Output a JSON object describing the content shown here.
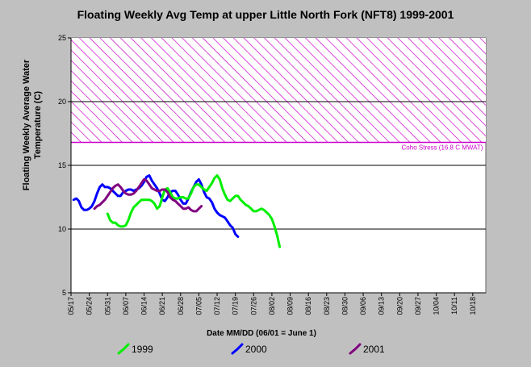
{
  "chart_data": {
    "type": "line",
    "title": "Floating Weekly Avg Temp at upper Little North Fork (NFT8) 1999-2001",
    "xlabel": "Date MM/DD (06/01 = June 1)",
    "ylabel_lines": [
      "Floating Weekly Average Water",
      "Temperature (C)"
    ],
    "x_ticks": [
      "05/17",
      "05/24",
      "05/31",
      "06/07",
      "06/14",
      "06/21",
      "06/28",
      "07/05",
      "07/12",
      "07/19",
      "07/26",
      "08/02",
      "08/09",
      "08/16",
      "08/23",
      "08/30",
      "09/06",
      "09/13",
      "09/20",
      "09/27",
      "10/04",
      "10/11",
      "10/18"
    ],
    "y_ticks": [
      5,
      10,
      15,
      20,
      25
    ],
    "ylim": [
      5,
      25
    ],
    "grid": "horizontal",
    "threshold": {
      "label": "Coho Stress (16.8 C MWAT)",
      "value": 16.8,
      "band_to": 25,
      "color": "#cc00cc"
    },
    "legend_position": "bottom",
    "series": [
      {
        "name": "1999",
        "color": "#00ee00",
        "points": [
          [
            14,
            11.2
          ],
          [
            15,
            10.7
          ],
          [
            16,
            10.5
          ],
          [
            17,
            10.5
          ],
          [
            18,
            10.3
          ],
          [
            19,
            10.2
          ],
          [
            20,
            10.2
          ],
          [
            21,
            10.3
          ],
          [
            22,
            10.7
          ],
          [
            23,
            11.3
          ],
          [
            24,
            11.7
          ],
          [
            25,
            11.9
          ],
          [
            26,
            12.1
          ],
          [
            27,
            12.3
          ],
          [
            28,
            12.3
          ],
          [
            29,
            12.3
          ],
          [
            30,
            12.3
          ],
          [
            31,
            12.2
          ],
          [
            32,
            12.0
          ],
          [
            33,
            11.6
          ],
          [
            34,
            11.8
          ],
          [
            35,
            12.5
          ],
          [
            36,
            13.1
          ],
          [
            37,
            13.2
          ],
          [
            38,
            12.9
          ],
          [
            39,
            12.5
          ],
          [
            40,
            12.4
          ],
          [
            41,
            12.4
          ],
          [
            42,
            12.5
          ],
          [
            43,
            12.5
          ],
          [
            44,
            12.4
          ],
          [
            45,
            12.4
          ],
          [
            46,
            12.8
          ],
          [
            47,
            13.3
          ],
          [
            48,
            13.5
          ],
          [
            49,
            13.5
          ],
          [
            50,
            13.3
          ],
          [
            51,
            13.1
          ],
          [
            52,
            13.0
          ],
          [
            53,
            13.3
          ],
          [
            54,
            13.6
          ],
          [
            55,
            14.0
          ],
          [
            56,
            14.2
          ],
          [
            57,
            13.9
          ],
          [
            58,
            13.2
          ],
          [
            59,
            12.7
          ],
          [
            60,
            12.3
          ],
          [
            61,
            12.2
          ],
          [
            62,
            12.4
          ],
          [
            63,
            12.6
          ],
          [
            64,
            12.6
          ],
          [
            65,
            12.3
          ],
          [
            66,
            12.1
          ],
          [
            67,
            11.9
          ],
          [
            68,
            11.8
          ],
          [
            69,
            11.6
          ],
          [
            70,
            11.4
          ],
          [
            71,
            11.4
          ],
          [
            72,
            11.5
          ],
          [
            73,
            11.6
          ],
          [
            74,
            11.5
          ],
          [
            75,
            11.3
          ],
          [
            76,
            11.1
          ],
          [
            77,
            10.8
          ],
          [
            78,
            10.2
          ],
          [
            79,
            9.5
          ],
          [
            80,
            8.6
          ]
        ]
      },
      {
        "name": "2000",
        "color": "#0000ff",
        "points": [
          [
            1,
            12.3
          ],
          [
            2,
            12.4
          ],
          [
            3,
            12.2
          ],
          [
            4,
            11.7
          ],
          [
            5,
            11.5
          ],
          [
            6,
            11.5
          ],
          [
            7,
            11.6
          ],
          [
            8,
            11.8
          ],
          [
            9,
            12.2
          ],
          [
            10,
            12.8
          ],
          [
            11,
            13.3
          ],
          [
            12,
            13.5
          ],
          [
            13,
            13.3
          ],
          [
            14,
            13.3
          ],
          [
            15,
            13.2
          ],
          [
            16,
            13.0
          ],
          [
            17,
            12.8
          ],
          [
            18,
            12.6
          ],
          [
            19,
            12.6
          ],
          [
            20,
            12.9
          ],
          [
            21,
            13.0
          ],
          [
            22,
            13.1
          ],
          [
            23,
            13.1
          ],
          [
            24,
            13.0
          ],
          [
            25,
            13.1
          ],
          [
            26,
            13.2
          ],
          [
            27,
            13.4
          ],
          [
            28,
            13.7
          ],
          [
            29,
            14.1
          ],
          [
            30,
            14.2
          ],
          [
            31,
            13.8
          ],
          [
            32,
            13.5
          ],
          [
            33,
            13.2
          ],
          [
            34,
            12.8
          ],
          [
            35,
            12.3
          ],
          [
            36,
            12.2
          ],
          [
            37,
            12.5
          ],
          [
            38,
            12.9
          ],
          [
            39,
            13.0
          ],
          [
            40,
            13.0
          ],
          [
            41,
            12.7
          ],
          [
            42,
            12.3
          ],
          [
            43,
            12.0
          ],
          [
            44,
            12.0
          ],
          [
            45,
            12.4
          ],
          [
            46,
            12.9
          ],
          [
            47,
            13.3
          ],
          [
            48,
            13.7
          ],
          [
            49,
            13.9
          ],
          [
            50,
            13.5
          ],
          [
            51,
            12.9
          ],
          [
            52,
            12.5
          ],
          [
            53,
            12.4
          ],
          [
            54,
            12.1
          ],
          [
            55,
            11.6
          ],
          [
            56,
            11.3
          ],
          [
            57,
            11.1
          ],
          [
            58,
            11.0
          ],
          [
            59,
            10.9
          ],
          [
            60,
            10.6
          ],
          [
            61,
            10.3
          ],
          [
            62,
            10.1
          ],
          [
            63,
            9.6
          ],
          [
            64,
            9.4
          ]
        ]
      },
      {
        "name": "2001",
        "color": "#800080",
        "points": [
          [
            9,
            11.6
          ],
          [
            10,
            11.8
          ],
          [
            11,
            11.9
          ],
          [
            12,
            12.1
          ],
          [
            13,
            12.3
          ],
          [
            14,
            12.6
          ],
          [
            15,
            12.9
          ],
          [
            16,
            13.2
          ],
          [
            17,
            13.4
          ],
          [
            18,
            13.5
          ],
          [
            19,
            13.3
          ],
          [
            20,
            13.0
          ],
          [
            21,
            12.8
          ],
          [
            22,
            12.7
          ],
          [
            23,
            12.7
          ],
          [
            24,
            12.8
          ],
          [
            25,
            13.0
          ],
          [
            26,
            13.3
          ],
          [
            27,
            13.6
          ],
          [
            28,
            13.9
          ],
          [
            29,
            13.8
          ],
          [
            30,
            13.5
          ],
          [
            31,
            13.2
          ],
          [
            32,
            13.1
          ],
          [
            33,
            13.0
          ],
          [
            34,
            13.0
          ],
          [
            35,
            13.1
          ],
          [
            36,
            13.1
          ],
          [
            37,
            12.9
          ],
          [
            38,
            12.5
          ],
          [
            39,
            12.3
          ],
          [
            40,
            12.2
          ],
          [
            41,
            12.0
          ],
          [
            42,
            11.8
          ],
          [
            43,
            11.6
          ],
          [
            44,
            11.6
          ],
          [
            45,
            11.7
          ],
          [
            46,
            11.5
          ],
          [
            47,
            11.4
          ],
          [
            48,
            11.4
          ],
          [
            49,
            11.6
          ],
          [
            50,
            11.8
          ]
        ]
      }
    ]
  }
}
